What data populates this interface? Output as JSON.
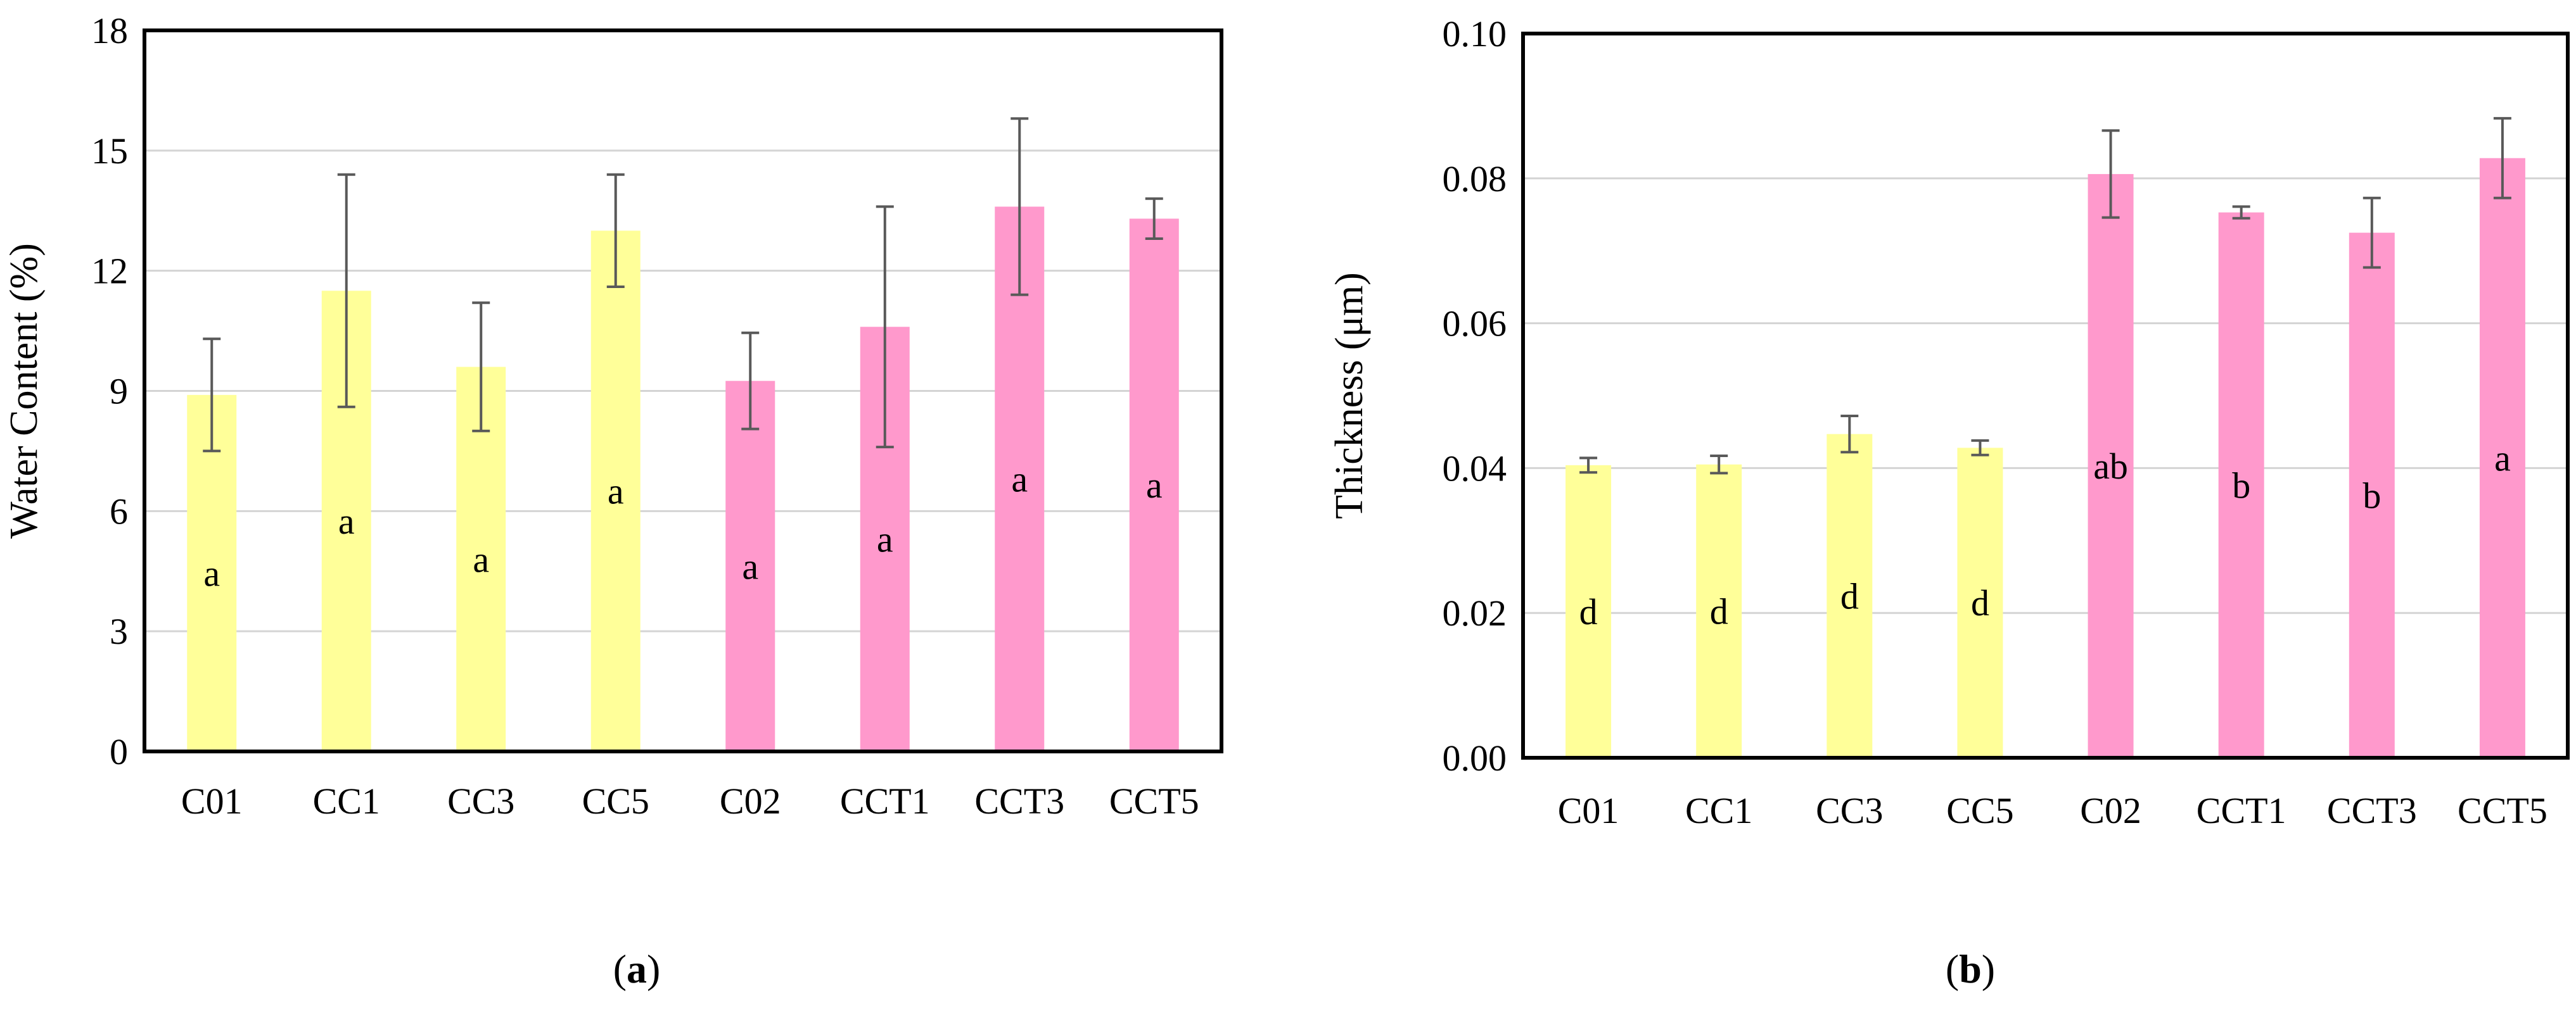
{
  "chart_data": [
    {
      "type": "bar",
      "panel_label": "a",
      "title": "",
      "xlabel": "",
      "ylabel": "Water Content (%)",
      "ylim": [
        0,
        18
      ],
      "yticks": [
        0,
        3,
        6,
        9,
        12,
        15,
        18
      ],
      "ytick_labels": [
        "0",
        "3",
        "6",
        "9",
        "12",
        "15",
        "18"
      ],
      "grid": true,
      "categories": [
        "C01",
        "CC1",
        "CC3",
        "CC5",
        "C02",
        "CCT1",
        "CCT3",
        "CCT5"
      ],
      "values": [
        8.9,
        11.5,
        9.6,
        13.0,
        9.25,
        10.6,
        13.6,
        13.3
      ],
      "error": [
        1.4,
        2.9,
        1.6,
        1.4,
        1.2,
        3.0,
        2.2,
        0.5
      ],
      "significance": [
        "a",
        "a",
        "a",
        "a",
        "a",
        "a",
        "a",
        "a"
      ],
      "colors": [
        "#FFFF99",
        "#FFFF99",
        "#FFFF99",
        "#FFFF99",
        "#FF99CC",
        "#FF99CC",
        "#FF99CC",
        "#FF99CC"
      ]
    },
    {
      "type": "bar",
      "panel_label": "b",
      "title": "",
      "xlabel": "",
      "ylabel": "Thickness (μm)",
      "ylim": [
        0,
        0.1
      ],
      "yticks": [
        0,
        0.02,
        0.04,
        0.06,
        0.08,
        0.1
      ],
      "ytick_labels": [
        "0.00",
        "0.02",
        "0.04",
        "0.06",
        "0.08",
        "0.10"
      ],
      "grid": true,
      "categories": [
        "C01",
        "CC1",
        "CC3",
        "CC5",
        "C02",
        "CCT1",
        "CCT3",
        "CCT5"
      ],
      "values": [
        0.0404,
        0.0405,
        0.0447,
        0.0428,
        0.0806,
        0.0753,
        0.0725,
        0.0828
      ],
      "error": [
        0.001,
        0.0012,
        0.0025,
        0.001,
        0.006,
        0.0008,
        0.0048,
        0.0055
      ],
      "significance": [
        "d",
        "d",
        "d",
        "d",
        "ab",
        "b",
        "b",
        "a"
      ],
      "colors": [
        "#FFFF99",
        "#FFFF99",
        "#FFFF99",
        "#FFFF99",
        "#FF99CC",
        "#FF99CC",
        "#FF99CC",
        "#FF99CC"
      ]
    }
  ]
}
